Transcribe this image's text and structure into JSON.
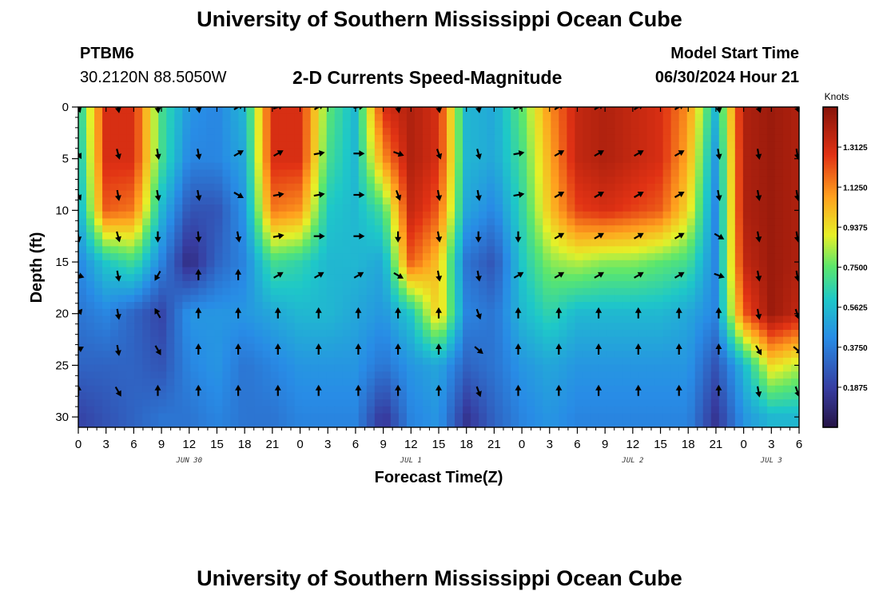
{
  "title": "University of Southern Mississippi Ocean Cube",
  "footer_title": "University of Southern Mississippi Ocean Cube",
  "station": "PTBM6",
  "coordinates": "30.2120N  88.5050W",
  "subtitle": "2-D Currents Speed-Magnitude",
  "model_start_label": "Model Start Time",
  "model_start_value": "06/30/2024 Hour 21",
  "chart_data": {
    "type": "heatmap",
    "title": "2-D Currents Speed-Magnitude",
    "xlabel": "Forecast Time(Z)",
    "ylabel": "Depth (ft)",
    "x_hours_from_jun30_00z": [
      0,
      3,
      6,
      9,
      12,
      15,
      18,
      21,
      24,
      27,
      30,
      33,
      36,
      39,
      42,
      45,
      48,
      51,
      54,
      57,
      60,
      63,
      66,
      69,
      72,
      75,
      78
    ],
    "x_tick_labels": [
      "0",
      "3",
      "6",
      "9",
      "12",
      "15",
      "18",
      "21",
      "0",
      "3",
      "6",
      "9",
      "12",
      "15",
      "18",
      "21",
      "0",
      "3",
      "6",
      "9",
      "12",
      "15",
      "18",
      "21",
      "0",
      "3",
      "6"
    ],
    "date_labels": [
      {
        "text": "JUN 30",
        "hour": 12
      },
      {
        "text": "JUL 1",
        "hour": 36
      },
      {
        "text": "JUL 2",
        "hour": 60
      },
      {
        "text": "JUL 3",
        "hour": 75
      }
    ],
    "y_ticks": [
      0,
      5,
      10,
      15,
      20,
      25,
      30
    ],
    "ylim": [
      0,
      31
    ],
    "xlim": [
      0,
      78
    ],
    "colorbar": {
      "unit": "Knots",
      "range": [
        0.0,
        1.5
      ],
      "tick_values": [
        0.1875,
        0.375,
        0.5625,
        0.75,
        0.9375,
        1.125,
        1.3125
      ],
      "tick_labels": [
        "0.1875",
        "0.3750",
        "0.5625",
        "0.7500",
        "0.9375",
        "1.1250",
        "1.3125"
      ]
    },
    "speed_depths_ft": [
      0,
      5,
      10,
      15,
      20,
      25,
      30
    ],
    "speed_hours": [
      0,
      3,
      6,
      9,
      12,
      15,
      18,
      21,
      24,
      27,
      30,
      33,
      36,
      39,
      42,
      45,
      48,
      51,
      54,
      57,
      60,
      63,
      66,
      69,
      72,
      75,
      78
    ],
    "speed_knots": [
      [
        0.6,
        1.3,
        1.3,
        0.7,
        0.45,
        0.4,
        0.55,
        1.3,
        1.3,
        0.75,
        0.55,
        1.3,
        1.4,
        1.3,
        0.55,
        0.5,
        0.75,
        1.1,
        1.35,
        1.4,
        1.35,
        1.3,
        1.1,
        0.55,
        1.4,
        1.45,
        1.4
      ],
      [
        0.55,
        1.3,
        1.3,
        0.7,
        0.4,
        0.4,
        0.5,
        1.3,
        1.3,
        0.7,
        0.55,
        1.1,
        1.4,
        1.3,
        0.55,
        0.5,
        0.7,
        1.05,
        1.35,
        1.4,
        1.35,
        1.3,
        1.05,
        0.45,
        1.4,
        1.45,
        1.4
      ],
      [
        0.5,
        1.2,
        1.15,
        0.55,
        0.25,
        0.25,
        0.45,
        1.15,
        1.1,
        0.6,
        0.55,
        0.7,
        1.35,
        1.2,
        0.5,
        0.4,
        0.65,
        1.0,
        1.25,
        1.3,
        1.25,
        1.2,
        0.95,
        0.4,
        1.4,
        1.45,
        1.4
      ],
      [
        0.4,
        0.6,
        0.7,
        0.4,
        0.1,
        0.3,
        0.4,
        0.7,
        0.65,
        0.55,
        0.55,
        0.5,
        1.2,
        1.0,
        0.35,
        0.25,
        0.6,
        0.8,
        0.85,
        0.8,
        0.8,
        0.75,
        0.7,
        0.4,
        1.35,
        1.45,
        1.4
      ],
      [
        0.35,
        0.4,
        0.3,
        0.2,
        0.45,
        0.45,
        0.45,
        0.5,
        0.55,
        0.55,
        0.5,
        0.45,
        0.6,
        1.0,
        0.4,
        0.35,
        0.55,
        0.65,
        0.55,
        0.55,
        0.55,
        0.55,
        0.5,
        0.4,
        1.2,
        1.45,
        1.35
      ],
      [
        0.3,
        0.3,
        0.3,
        0.25,
        0.4,
        0.45,
        0.35,
        0.4,
        0.45,
        0.45,
        0.45,
        0.35,
        0.45,
        0.5,
        0.3,
        0.35,
        0.45,
        0.5,
        0.45,
        0.45,
        0.45,
        0.45,
        0.45,
        0.25,
        0.55,
        0.95,
        0.85
      ],
      [
        0.2,
        0.25,
        0.3,
        0.35,
        0.35,
        0.4,
        0.35,
        0.35,
        0.4,
        0.4,
        0.4,
        0.15,
        0.4,
        0.45,
        0.15,
        0.3,
        0.4,
        0.45,
        0.4,
        0.4,
        0.4,
        0.4,
        0.4,
        0.15,
        0.45,
        0.55,
        0.55
      ]
    ],
    "arrow_hours": [
      0,
      4.3,
      8.6,
      13,
      17.3,
      21.6,
      26,
      30.3,
      34.6,
      39,
      43.3,
      47.6,
      52,
      56.3,
      60.6,
      65,
      69.3,
      73.6,
      77.8
    ],
    "arrow_depths_ft": [
      0,
      4.5,
      8.5,
      12.5,
      16.3,
      20,
      23.5,
      27.5
    ],
    "arrow_directions_deg": [
      [
        160,
        170,
        175,
        170,
        60,
        70,
        60,
        80,
        170,
        170,
        170,
        70,
        60,
        60,
        60,
        60,
        170,
        160,
        160
      ],
      [
        150,
        165,
        170,
        170,
        60,
        60,
        80,
        90,
        110,
        160,
        165,
        80,
        60,
        60,
        60,
        60,
        170,
        170,
        170
      ],
      [
        155,
        170,
        170,
        170,
        120,
        80,
        80,
        90,
        160,
        170,
        170,
        80,
        60,
        60,
        60,
        60,
        170,
        170,
        170
      ],
      [
        170,
        165,
        180,
        175,
        170,
        80,
        90,
        90,
        180,
        170,
        180,
        180,
        60,
        60,
        60,
        60,
        120,
        170,
        170
      ],
      [
        110,
        170,
        210,
        0,
        0,
        60,
        60,
        60,
        120,
        170,
        170,
        60,
        60,
        60,
        60,
        60,
        110,
        170,
        170
      ],
      [
        40,
        170,
        330,
        0,
        0,
        0,
        0,
        0,
        0,
        0,
        160,
        0,
        0,
        0,
        0,
        0,
        0,
        170,
        160
      ],
      [
        60,
        170,
        150,
        0,
        0,
        0,
        0,
        0,
        0,
        0,
        130,
        0,
        0,
        0,
        0,
        0,
        0,
        150,
        130
      ],
      [
        0,
        150,
        0,
        0,
        0,
        0,
        0,
        0,
        0,
        0,
        160,
        0,
        0,
        0,
        0,
        0,
        0,
        170,
        160
      ]
    ]
  }
}
